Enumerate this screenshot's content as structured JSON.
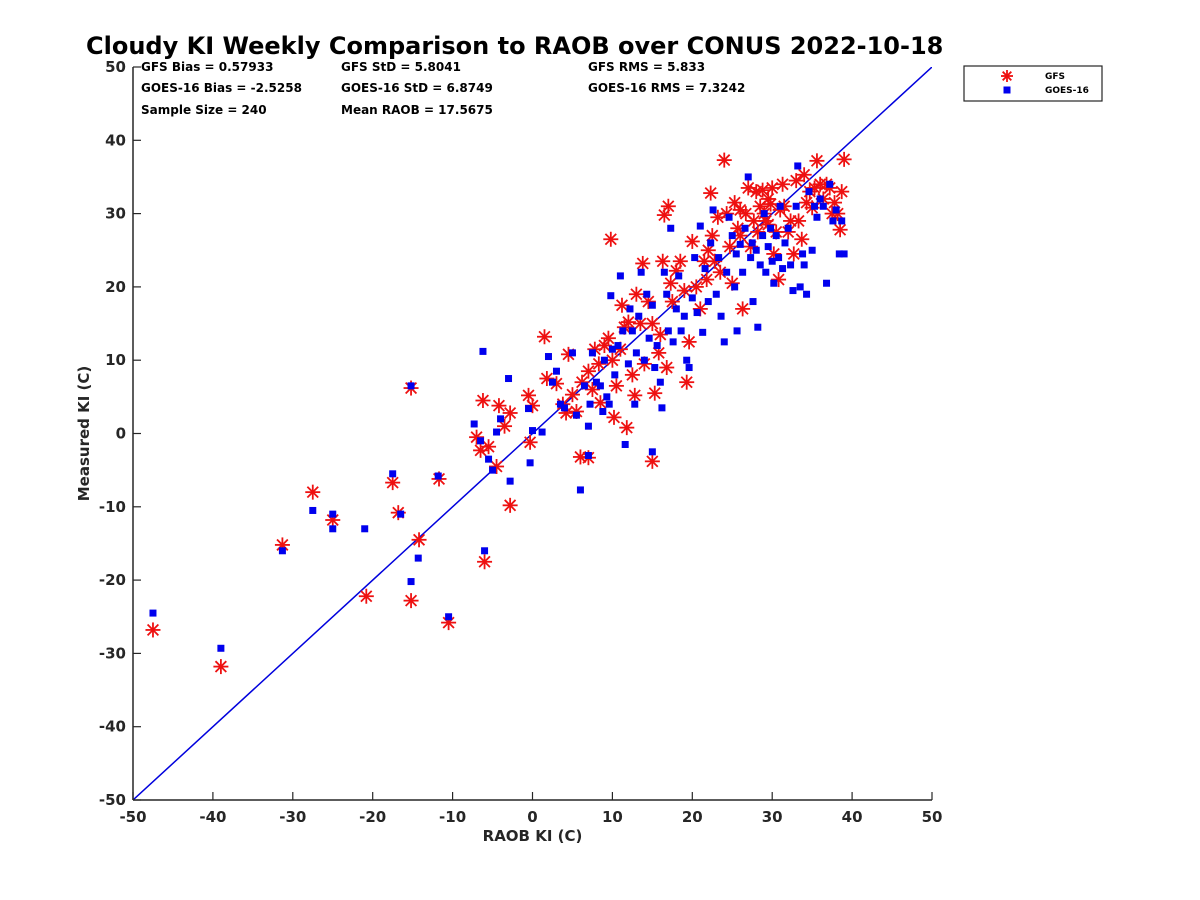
{
  "chart_data": {
    "type": "scatter",
    "title": "Cloudy KI Weekly Comparison to RAOB over CONUS 2022-10-18",
    "xlabel": "RAOB KI (C)",
    "ylabel": "Measured KI (C)",
    "xlim": [
      -50,
      50
    ],
    "ylim": [
      -50,
      50
    ],
    "xticks": [
      -50,
      -40,
      -30,
      -20,
      -10,
      0,
      10,
      20,
      30,
      40,
      50
    ],
    "yticks": [
      -50,
      -40,
      -30,
      -20,
      -10,
      0,
      10,
      20,
      30,
      40,
      50
    ],
    "grid": false,
    "legend_position": "outside-top-right",
    "reference_line": {
      "type": "one-to-one",
      "color": "#0000dd"
    },
    "stats": [
      [
        "GFS Bias = 0.57933",
        "GFS StD = 5.8041",
        "GFS RMS = 5.833"
      ],
      [
        "GOES-16 Bias = -2.5258",
        "GOES-16 StD = 6.8749",
        "GOES-16 RMS = 7.3242"
      ],
      [
        "Sample Size = 240",
        "Mean RAOB = 17.5675",
        ""
      ]
    ],
    "series": [
      {
        "name": "GFS",
        "marker": "asterisk",
        "color": "#ee1111",
        "points": [
          [
            -47.5,
            -26.8
          ],
          [
            -39,
            -31.8
          ],
          [
            -31.3,
            -15.2
          ],
          [
            -27.5,
            -8
          ],
          [
            -25,
            -11.8
          ],
          [
            -20.8,
            -22.2
          ],
          [
            -17.5,
            -6.7
          ],
          [
            -16.8,
            -10.8
          ],
          [
            -15.2,
            6.2
          ],
          [
            -15.2,
            -22.8
          ],
          [
            -14.2,
            -14.5
          ],
          [
            -11.7,
            -6.2
          ],
          [
            -10.5,
            -25.8
          ],
          [
            -7,
            -0.5
          ],
          [
            -6.5,
            -2.3
          ],
          [
            -6.2,
            4.5
          ],
          [
            -6,
            -17.5
          ],
          [
            -5.5,
            -1.8
          ],
          [
            -4.5,
            -4.5
          ],
          [
            -4.2,
            3.8
          ],
          [
            -3.5,
            1
          ],
          [
            -2.8,
            2.8
          ],
          [
            -2.8,
            -9.8
          ],
          [
            -0.5,
            5.2
          ],
          [
            -0.3,
            -1.2
          ],
          [
            0,
            3.8
          ],
          [
            1.5,
            13.2
          ],
          [
            1.8,
            7.5
          ],
          [
            3,
            6.8
          ],
          [
            3.8,
            4
          ],
          [
            4.2,
            2.8
          ],
          [
            4.5,
            10.8
          ],
          [
            5,
            5.3
          ],
          [
            5.5,
            3
          ],
          [
            6,
            -3.2
          ],
          [
            6.2,
            7
          ],
          [
            7,
            -3.3
          ],
          [
            7,
            8.5
          ],
          [
            7.5,
            6
          ],
          [
            7.8,
            11.5
          ],
          [
            8.3,
            9.5
          ],
          [
            8.5,
            4.2
          ],
          [
            9,
            12
          ],
          [
            9.5,
            13
          ],
          [
            9.8,
            26.5
          ],
          [
            10,
            10
          ],
          [
            10.2,
            2.2
          ],
          [
            10.5,
            6.5
          ],
          [
            11,
            11.5
          ],
          [
            11.2,
            17.5
          ],
          [
            11.5,
            14.5
          ],
          [
            11.8,
            0.8
          ],
          [
            12,
            15.2
          ],
          [
            12.5,
            8
          ],
          [
            12.8,
            5.2
          ],
          [
            13,
            19
          ],
          [
            13.5,
            15
          ],
          [
            13.8,
            23.2
          ],
          [
            14,
            9.5
          ],
          [
            14.5,
            18
          ],
          [
            15,
            15
          ],
          [
            15,
            -3.8
          ],
          [
            15.3,
            5.5
          ],
          [
            15.8,
            11
          ],
          [
            16,
            13.5
          ],
          [
            16.3,
            23.5
          ],
          [
            16.5,
            29.8
          ],
          [
            16.8,
            9
          ],
          [
            17,
            31
          ],
          [
            17.3,
            20.5
          ],
          [
            17.5,
            18
          ],
          [
            18,
            22.2
          ],
          [
            18.5,
            23.5
          ],
          [
            19,
            19.5
          ],
          [
            19.3,
            7
          ],
          [
            19.6,
            12.5
          ],
          [
            20,
            26.2
          ],
          [
            20.5,
            20
          ],
          [
            21,
            17
          ],
          [
            21.5,
            23.5
          ],
          [
            21.8,
            21
          ],
          [
            22,
            25
          ],
          [
            22.3,
            32.8
          ],
          [
            22.5,
            27
          ],
          [
            22.8,
            23.5
          ],
          [
            23.2,
            29.5
          ],
          [
            23.5,
            22
          ],
          [
            24,
            37.3
          ],
          [
            24.3,
            30
          ],
          [
            24.7,
            25.5
          ],
          [
            25,
            20.5
          ],
          [
            25.3,
            31.5
          ],
          [
            25.7,
            28
          ],
          [
            26,
            27
          ],
          [
            26.3,
            17
          ],
          [
            26.7,
            30
          ],
          [
            27,
            33.5
          ],
          [
            27.3,
            25.5
          ],
          [
            27.7,
            29
          ],
          [
            28,
            33
          ],
          [
            28.2,
            27.5
          ],
          [
            28.5,
            31
          ],
          [
            28.8,
            33.2
          ],
          [
            29,
            30
          ],
          [
            29.2,
            29
          ],
          [
            29.5,
            32
          ],
          [
            29.8,
            31.3
          ],
          [
            30,
            33.5
          ],
          [
            30.2,
            24.5
          ],
          [
            30.5,
            27.5
          ],
          [
            30.8,
            21
          ],
          [
            31,
            30.5
          ],
          [
            31.3,
            34
          ],
          [
            31.5,
            31
          ],
          [
            32,
            27.5
          ],
          [
            32.3,
            29
          ],
          [
            32.7,
            24.5
          ],
          [
            33,
            34.5
          ],
          [
            33.3,
            29
          ],
          [
            33.7,
            26.5
          ],
          [
            34,
            35.3
          ],
          [
            34.3,
            31.5
          ],
          [
            34.7,
            33
          ],
          [
            35,
            30.8
          ],
          [
            35.3,
            33.5
          ],
          [
            35.6,
            37.2
          ],
          [
            36,
            34
          ],
          [
            36.4,
            32
          ],
          [
            36.8,
            34
          ],
          [
            37.2,
            33.5
          ],
          [
            37.5,
            30
          ],
          [
            37.8,
            31.5
          ],
          [
            38.2,
            30
          ],
          [
            38.5,
            27.8
          ],
          [
            38.7,
            33
          ],
          [
            39,
            37.4
          ],
          [
            29.5,
            28.5
          ],
          [
            26,
            30.5
          ]
        ]
      },
      {
        "name": "GOES-16",
        "marker": "square",
        "color": "#0000ee",
        "points": [
          [
            -47.5,
            -24.5
          ],
          [
            -39,
            -29.3
          ],
          [
            -31.3,
            -16
          ],
          [
            -27.5,
            -10.5
          ],
          [
            -25,
            -11
          ],
          [
            -25,
            -13
          ],
          [
            -21,
            -13
          ],
          [
            -17.5,
            -5.5
          ],
          [
            -16.5,
            -11
          ],
          [
            -15.2,
            6.5
          ],
          [
            -15.2,
            -20.2
          ],
          [
            -14.3,
            -17
          ],
          [
            -11.8,
            -5.8
          ],
          [
            -10.5,
            -25
          ],
          [
            -7.3,
            1.3
          ],
          [
            -6.5,
            -1
          ],
          [
            -6.2,
            11.2
          ],
          [
            -6,
            -16
          ],
          [
            -5.5,
            -3.5
          ],
          [
            -5,
            -5
          ],
          [
            -4.5,
            0.2
          ],
          [
            -4,
            2
          ],
          [
            -3,
            7.5
          ],
          [
            -2.8,
            -6.5
          ],
          [
            -0.5,
            3.4
          ],
          [
            -0.3,
            -4
          ],
          [
            0,
            0.4
          ],
          [
            1.2,
            0.2
          ],
          [
            2,
            10.5
          ],
          [
            2.5,
            7
          ],
          [
            3,
            8.5
          ],
          [
            3.5,
            4
          ],
          [
            4,
            3.5
          ],
          [
            5,
            11
          ],
          [
            5.5,
            2.5
          ],
          [
            6,
            -7.7
          ],
          [
            6.5,
            6.5
          ],
          [
            7,
            1
          ],
          [
            7,
            -3
          ],
          [
            7.2,
            4
          ],
          [
            7.5,
            11
          ],
          [
            8,
            7
          ],
          [
            8.5,
            6.5
          ],
          [
            8.8,
            3
          ],
          [
            9,
            10
          ],
          [
            9.3,
            5
          ],
          [
            9.6,
            4
          ],
          [
            9.8,
            18.8
          ],
          [
            10,
            11.5
          ],
          [
            10.3,
            8
          ],
          [
            10.7,
            12
          ],
          [
            11,
            21.5
          ],
          [
            11.3,
            14
          ],
          [
            11.6,
            -1.5
          ],
          [
            12,
            9.5
          ],
          [
            12.2,
            17
          ],
          [
            12.5,
            14
          ],
          [
            12.8,
            4
          ],
          [
            13,
            11
          ],
          [
            13.3,
            16
          ],
          [
            13.6,
            22
          ],
          [
            14,
            10
          ],
          [
            14.3,
            19
          ],
          [
            14.6,
            13
          ],
          [
            15,
            17.5
          ],
          [
            15,
            -2.5
          ],
          [
            15.3,
            9
          ],
          [
            15.6,
            12
          ],
          [
            16,
            7
          ],
          [
            16.2,
            3.5
          ],
          [
            16.5,
            22
          ],
          [
            16.8,
            19
          ],
          [
            17,
            14
          ],
          [
            17.3,
            28
          ],
          [
            17.6,
            12.5
          ],
          [
            18,
            17
          ],
          [
            18.3,
            21.5
          ],
          [
            18.6,
            14
          ],
          [
            19,
            16
          ],
          [
            19.3,
            10
          ],
          [
            19.6,
            9
          ],
          [
            20,
            18.5
          ],
          [
            20.3,
            24
          ],
          [
            20.6,
            16.5
          ],
          [
            21,
            28.3
          ],
          [
            21.3,
            13.8
          ],
          [
            21.6,
            22.5
          ],
          [
            22,
            18
          ],
          [
            22.3,
            26
          ],
          [
            22.6,
            30.5
          ],
          [
            23,
            19
          ],
          [
            23.3,
            24
          ],
          [
            23.6,
            16
          ],
          [
            24,
            12.5
          ],
          [
            24.3,
            22
          ],
          [
            24.6,
            29.5
          ],
          [
            25,
            27
          ],
          [
            25.3,
            20
          ],
          [
            25.6,
            14
          ],
          [
            26,
            25.8
          ],
          [
            26.3,
            22
          ],
          [
            26.6,
            28
          ],
          [
            27,
            35
          ],
          [
            27.3,
            24
          ],
          [
            27.6,
            18
          ],
          [
            28,
            25
          ],
          [
            28.2,
            14.5
          ],
          [
            28.5,
            23
          ],
          [
            28.8,
            27
          ],
          [
            29,
            30
          ],
          [
            29.2,
            22
          ],
          [
            29.5,
            25.5
          ],
          [
            29.8,
            28
          ],
          [
            30,
            23.5
          ],
          [
            30.2,
            20.5
          ],
          [
            30.5,
            27
          ],
          [
            30.8,
            24
          ],
          [
            31,
            31
          ],
          [
            31.3,
            22.5
          ],
          [
            31.6,
            26
          ],
          [
            32,
            28
          ],
          [
            32.3,
            23
          ],
          [
            32.6,
            19.5
          ],
          [
            33,
            31
          ],
          [
            33.2,
            36.5
          ],
          [
            33.5,
            20
          ],
          [
            33.8,
            24.5
          ],
          [
            34,
            23
          ],
          [
            34.3,
            19
          ],
          [
            34.6,
            33
          ],
          [
            35,
            25
          ],
          [
            35.3,
            31
          ],
          [
            35.6,
            29.5
          ],
          [
            36,
            32
          ],
          [
            36.4,
            31
          ],
          [
            36.8,
            20.5
          ],
          [
            37.2,
            34
          ],
          [
            37.6,
            29
          ],
          [
            38,
            30.5
          ],
          [
            38.4,
            24.5
          ],
          [
            38.7,
            29
          ],
          [
            39,
            24.5
          ],
          [
            27.5,
            26
          ],
          [
            25.5,
            24.5
          ]
        ]
      }
    ]
  }
}
